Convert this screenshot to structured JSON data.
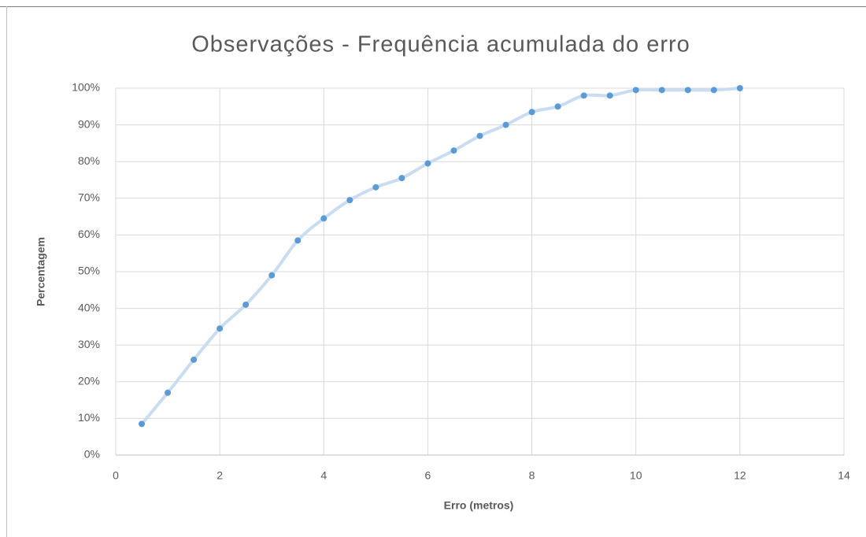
{
  "chart_data": {
    "type": "scatter",
    "title": "Observações - Frequência acumulada do erro",
    "x_label": "Erro (metros)",
    "y_label": "Percentagem",
    "x": [
      0.5,
      1,
      1.5,
      2,
      2.5,
      3,
      3.5,
      4,
      4.5,
      5,
      5.5,
      6,
      6.5,
      7,
      7.5,
      8,
      8.5,
      9,
      9.5,
      10,
      10.5,
      11,
      11.5,
      12
    ],
    "series": [
      {
        "color": "#5b9bd5",
        "line_color": "#c9dcf0",
        "values": [
          8.5,
          17,
          26,
          34.5,
          41,
          49,
          58.5,
          64.5,
          69.5,
          73,
          75.5,
          79.5,
          83,
          87,
          90,
          93.5,
          95,
          98,
          98,
          99.5,
          99.5,
          99.5,
          99.5,
          100
        ]
      }
    ],
    "xlim": [
      0,
      14
    ],
    "xticks": [
      0,
      2,
      4,
      6,
      8,
      10,
      12,
      14
    ],
    "ylim": [
      0,
      100
    ],
    "yticks": [
      {
        "value": 0,
        "label": "0%"
      },
      {
        "value": 10,
        "label": "10%"
      },
      {
        "value": 20,
        "label": "20%"
      },
      {
        "value": 30,
        "label": "30%"
      },
      {
        "value": 40,
        "label": "40%"
      },
      {
        "value": 50,
        "label": "50%"
      },
      {
        "value": 60,
        "label": "60%"
      },
      {
        "value": 70,
        "label": "70%"
      },
      {
        "value": 80,
        "label": "80%"
      },
      {
        "value": 90,
        "label": "90%"
      },
      {
        "value": 100,
        "label": "100%"
      }
    ],
    "grid": true
  }
}
